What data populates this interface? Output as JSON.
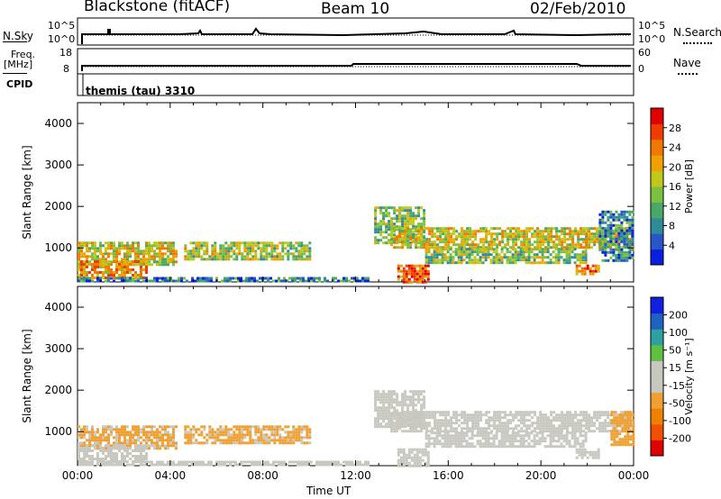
{
  "header": {
    "site": "Blackstone (fitACF)",
    "beam": "Beam 10",
    "date": "02/Feb/2010"
  },
  "status_panels": {
    "nsky_label": "N.Sky",
    "nsky_ticks": [
      "10^5",
      "10^0"
    ],
    "nsearch_label": "N.Search",
    "nsearch_ticks": [
      "10^5",
      "10^0"
    ],
    "freq_label": "Freq.",
    "freq_unit": "[MHz]",
    "freq_ticks": [
      "18",
      "8"
    ],
    "nave_label": "Nave",
    "nave_ticks": [
      "60",
      "0"
    ],
    "cpid_label": "CPID",
    "cpid_value": "themis (tau) 3310"
  },
  "colors": {
    "power_scale": [
      "#0a1ee0",
      "#2856c8",
      "#2f8a9a",
      "#47a868",
      "#7cc040",
      "#c0c81a",
      "#f0a000",
      "#f07800",
      "#f03c00",
      "#e00000"
    ],
    "velocity_scale": [
      "#e00000",
      "#f05000",
      "#f08000",
      "#f0a030",
      "#c8c8c0",
      "#c8c8c0",
      "#60c040",
      "#2ea0a0",
      "#2060c0",
      "#1020e0"
    ]
  },
  "chart_data": [
    {
      "type": "heatmap",
      "title": "Power",
      "xlabel": "Time UT",
      "ylabel": "Slant Range [km]",
      "x_ticks": [
        "00:00",
        "04:00",
        "08:00",
        "12:00",
        "16:00",
        "20:00",
        "00:00"
      ],
      "x_range_hours": [
        0,
        24
      ],
      "y_ticks": [
        "1000",
        "2000",
        "3000",
        "4000"
      ],
      "y_range_km": [
        180,
        4500
      ],
      "colorbar": {
        "label": "Power [dB]",
        "ticks": [
          "4",
          "8",
          "12",
          "16",
          "20",
          "24",
          "28"
        ],
        "range": [
          0,
          32
        ]
      },
      "regions": [
        {
          "t0": 0.0,
          "t1": 4.3,
          "r0": 600,
          "r1": 1150,
          "value": 18
        },
        {
          "t0": 0.0,
          "t1": 3.0,
          "r0": 300,
          "r1": 700,
          "value": 22
        },
        {
          "t0": 4.6,
          "t1": 10.0,
          "r0": 700,
          "r1": 1150,
          "value": 16
        },
        {
          "t0": 0.0,
          "t1": 12.5,
          "r0": 190,
          "r1": 300,
          "value": 8
        },
        {
          "t0": 12.8,
          "t1": 15.0,
          "r0": 1150,
          "r1": 2000,
          "value": 14
        },
        {
          "t0": 13.8,
          "t1": 15.2,
          "r0": 200,
          "r1": 600,
          "value": 26
        },
        {
          "t0": 13.5,
          "t1": 24.0,
          "r0": 1000,
          "r1": 1500,
          "value": 18
        },
        {
          "t0": 15.0,
          "t1": 22.0,
          "r0": 650,
          "r1": 1000,
          "value": 14
        },
        {
          "t0": 21.5,
          "t1": 22.5,
          "r0": 400,
          "r1": 600,
          "value": 24
        },
        {
          "t0": 22.5,
          "t1": 24.0,
          "r0": 700,
          "r1": 1900,
          "value": 8
        }
      ]
    },
    {
      "type": "heatmap",
      "title": "Velocity",
      "xlabel": "Time UT",
      "ylabel": "Slant Range [km]",
      "x_ticks": [
        "00:00",
        "04:00",
        "08:00",
        "12:00",
        "16:00",
        "20:00",
        "00:00"
      ],
      "x_range_hours": [
        0,
        24
      ],
      "y_ticks": [
        "1000",
        "2000",
        "3000",
        "4000"
      ],
      "y_range_km": [
        180,
        4500
      ],
      "colorbar": {
        "label": "Velocity [m s⁻¹]",
        "ticks": [
          "-200",
          "-100",
          "-50",
          "-15",
          "15",
          "50",
          "100",
          "200"
        ],
        "range": [
          -250,
          250
        ]
      },
      "regions": [
        {
          "t0": 0.0,
          "t1": 4.3,
          "r0": 600,
          "r1": 1150,
          "value": -60
        },
        {
          "t0": 0.0,
          "t1": 3.0,
          "r0": 300,
          "r1": 700,
          "value": 0
        },
        {
          "t0": 4.6,
          "t1": 10.0,
          "r0": 700,
          "r1": 1150,
          "value": -60
        },
        {
          "t0": 0.0,
          "t1": 12.5,
          "r0": 190,
          "r1": 300,
          "value": -30
        },
        {
          "t0": 12.8,
          "t1": 15.0,
          "r0": 1150,
          "r1": 2000,
          "value": 0
        },
        {
          "t0": 13.8,
          "t1": 15.2,
          "r0": 200,
          "r1": 600,
          "value": 0
        },
        {
          "t0": 13.5,
          "t1": 24.0,
          "r0": 1000,
          "r1": 1500,
          "value": 0
        },
        {
          "t0": 15.0,
          "t1": 22.0,
          "r0": 650,
          "r1": 1000,
          "value": 0
        },
        {
          "t0": 21.5,
          "t1": 22.5,
          "r0": 400,
          "r1": 600,
          "value": 0
        },
        {
          "t0": 23.0,
          "t1": 24.0,
          "r0": 700,
          "r1": 1500,
          "value": -70
        }
      ]
    }
  ]
}
